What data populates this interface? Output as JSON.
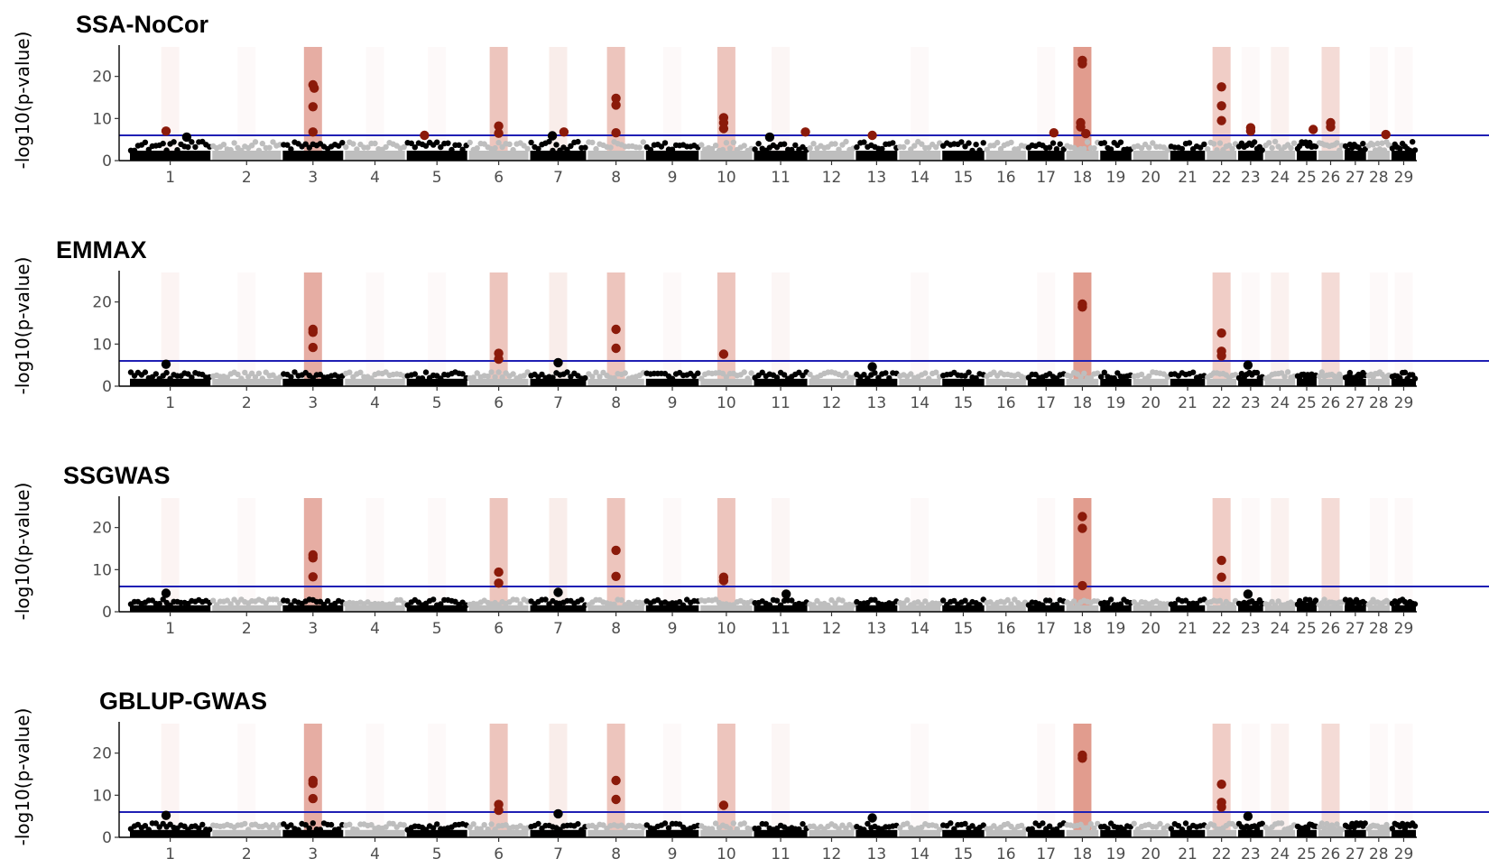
{
  "chart_data": {
    "type": "scatter",
    "ylabel": "-log10(p-value)",
    "yticks": [
      0,
      10,
      20
    ],
    "ylim": [
      0,
      27
    ],
    "threshold": 6,
    "colors": {
      "odd_chr": "#000000",
      "even_chr": "#bebebe",
      "significant": "#8b1a0a",
      "threshold_line": "#1f1fb4",
      "highlight": "#c84a32"
    },
    "chromosomes": [
      {
        "chr": "1",
        "len": 160
      },
      {
        "chr": "2",
        "len": 137
      },
      {
        "chr": "3",
        "len": 121
      },
      {
        "chr": "4",
        "len": 120
      },
      {
        "chr": "5",
        "len": 121
      },
      {
        "chr": "6",
        "len": 119
      },
      {
        "chr": "7",
        "len": 112
      },
      {
        "chr": "8",
        "len": 113
      },
      {
        "chr": "9",
        "len": 106
      },
      {
        "chr": "10",
        "len": 104
      },
      {
        "chr": "11",
        "len": 107
      },
      {
        "chr": "12",
        "len": 91
      },
      {
        "chr": "13",
        "len": 84
      },
      {
        "chr": "14",
        "len": 84
      },
      {
        "chr": "15",
        "len": 85
      },
      {
        "chr": "16",
        "len": 81
      },
      {
        "chr": "17",
        "len": 75
      },
      {
        "chr": "18",
        "len": 66
      },
      {
        "chr": "19",
        "len": 64
      },
      {
        "chr": "20",
        "len": 72
      },
      {
        "chr": "21",
        "len": 71
      },
      {
        "chr": "22",
        "len": 61
      },
      {
        "chr": "23",
        "len": 52
      },
      {
        "chr": "24",
        "len": 62
      },
      {
        "chr": "25",
        "len": 42
      },
      {
        "chr": "26",
        "len": 51
      },
      {
        "chr": "27",
        "len": 45
      },
      {
        "chr": "28",
        "len": 46
      },
      {
        "chr": "29",
        "len": 51
      }
    ],
    "highlights": [
      {
        "chr": "1",
        "intensity": 0.06
      },
      {
        "chr": "2",
        "intensity": 0.03
      },
      {
        "chr": "3",
        "intensity": 0.45
      },
      {
        "chr": "4",
        "intensity": 0.03
      },
      {
        "chr": "5",
        "intensity": 0.03
      },
      {
        "chr": "6",
        "intensity": 0.32
      },
      {
        "chr": "7",
        "intensity": 0.1
      },
      {
        "chr": "8",
        "intensity": 0.32
      },
      {
        "chr": "9",
        "intensity": 0.03
      },
      {
        "chr": "10",
        "intensity": 0.32
      },
      {
        "chr": "11",
        "intensity": 0.05
      },
      {
        "chr": "14",
        "intensity": 0.03
      },
      {
        "chr": "17",
        "intensity": 0.03
      },
      {
        "chr": "18",
        "intensity": 0.55
      },
      {
        "chr": "22",
        "intensity": 0.28
      },
      {
        "chr": "23",
        "intensity": 0.03
      },
      {
        "chr": "24",
        "intensity": 0.08
      },
      {
        "chr": "26",
        "intensity": 0.2
      },
      {
        "chr": "28",
        "intensity": 0.03
      },
      {
        "chr": "29",
        "intensity": 0.03
      }
    ],
    "panels": [
      {
        "title": "SSA-NoCor",
        "baseline": 4.3,
        "top_snps": [
          {
            "chr": "1",
            "pos": 0.45,
            "y": 7.0
          },
          {
            "chr": "1",
            "pos": 0.7,
            "y": 5.6
          },
          {
            "chr": "3",
            "pos": 0.5,
            "y": 18.0
          },
          {
            "chr": "3",
            "pos": 0.52,
            "y": 17.2
          },
          {
            "chr": "3",
            "pos": 0.5,
            "y": 12.8
          },
          {
            "chr": "3",
            "pos": 0.5,
            "y": 6.8
          },
          {
            "chr": "5",
            "pos": 0.3,
            "y": 6.0
          },
          {
            "chr": "6",
            "pos": 0.5,
            "y": 8.2
          },
          {
            "chr": "6",
            "pos": 0.5,
            "y": 6.5
          },
          {
            "chr": "7",
            "pos": 0.4,
            "y": 5.9
          },
          {
            "chr": "7",
            "pos": 0.6,
            "y": 6.8
          },
          {
            "chr": "8",
            "pos": 0.5,
            "y": 14.8
          },
          {
            "chr": "8",
            "pos": 0.5,
            "y": 13.2
          },
          {
            "chr": "8",
            "pos": 0.5,
            "y": 6.6
          },
          {
            "chr": "10",
            "pos": 0.45,
            "y": 10.2
          },
          {
            "chr": "10",
            "pos": 0.45,
            "y": 9.0
          },
          {
            "chr": "10",
            "pos": 0.45,
            "y": 7.6
          },
          {
            "chr": "11",
            "pos": 0.3,
            "y": 5.6
          },
          {
            "chr": "11",
            "pos": 0.95,
            "y": 6.8
          },
          {
            "chr": "13",
            "pos": 0.4,
            "y": 6.0
          },
          {
            "chr": "17",
            "pos": 0.7,
            "y": 6.6
          },
          {
            "chr": "18",
            "pos": 0.5,
            "y": 23.8
          },
          {
            "chr": "18",
            "pos": 0.5,
            "y": 23.0
          },
          {
            "chr": "18",
            "pos": 0.45,
            "y": 9.0
          },
          {
            "chr": "18",
            "pos": 0.45,
            "y": 8.0
          },
          {
            "chr": "18",
            "pos": 0.6,
            "y": 6.4
          },
          {
            "chr": "22",
            "pos": 0.5,
            "y": 17.5
          },
          {
            "chr": "22",
            "pos": 0.5,
            "y": 13.0
          },
          {
            "chr": "22",
            "pos": 0.5,
            "y": 9.5
          },
          {
            "chr": "23",
            "pos": 0.5,
            "y": 7.8
          },
          {
            "chr": "23",
            "pos": 0.5,
            "y": 7.0
          },
          {
            "chr": "25",
            "pos": 0.8,
            "y": 7.4
          },
          {
            "chr": "26",
            "pos": 0.5,
            "y": 9.0
          },
          {
            "chr": "26",
            "pos": 0.5,
            "y": 8.0
          },
          {
            "chr": "28",
            "pos": 0.8,
            "y": 6.2
          }
        ]
      },
      {
        "title": "EMMAX",
        "baseline": 3.2,
        "top_snps": [
          {
            "chr": "1",
            "pos": 0.45,
            "y": 5.2
          },
          {
            "chr": "3",
            "pos": 0.5,
            "y": 13.5
          },
          {
            "chr": "3",
            "pos": 0.5,
            "y": 12.8
          },
          {
            "chr": "3",
            "pos": 0.5,
            "y": 9.2
          },
          {
            "chr": "6",
            "pos": 0.5,
            "y": 7.8
          },
          {
            "chr": "6",
            "pos": 0.5,
            "y": 6.4
          },
          {
            "chr": "7",
            "pos": 0.5,
            "y": 5.6
          },
          {
            "chr": "8",
            "pos": 0.5,
            "y": 13.5
          },
          {
            "chr": "8",
            "pos": 0.5,
            "y": 9.0
          },
          {
            "chr": "10",
            "pos": 0.45,
            "y": 7.6
          },
          {
            "chr": "13",
            "pos": 0.4,
            "y": 4.6
          },
          {
            "chr": "18",
            "pos": 0.5,
            "y": 19.5
          },
          {
            "chr": "18",
            "pos": 0.5,
            "y": 18.8
          },
          {
            "chr": "22",
            "pos": 0.5,
            "y": 12.6
          },
          {
            "chr": "22",
            "pos": 0.5,
            "y": 8.3
          },
          {
            "chr": "22",
            "pos": 0.5,
            "y": 7.2
          },
          {
            "chr": "23",
            "pos": 0.4,
            "y": 5.0
          }
        ]
      },
      {
        "title": "SSGWAS",
        "baseline": 2.8,
        "top_snps": [
          {
            "chr": "1",
            "pos": 0.45,
            "y": 4.4
          },
          {
            "chr": "3",
            "pos": 0.5,
            "y": 13.5
          },
          {
            "chr": "3",
            "pos": 0.5,
            "y": 12.8
          },
          {
            "chr": "3",
            "pos": 0.5,
            "y": 8.3
          },
          {
            "chr": "6",
            "pos": 0.5,
            "y": 9.4
          },
          {
            "chr": "6",
            "pos": 0.5,
            "y": 6.8
          },
          {
            "chr": "7",
            "pos": 0.5,
            "y": 4.6
          },
          {
            "chr": "8",
            "pos": 0.5,
            "y": 14.6
          },
          {
            "chr": "8",
            "pos": 0.5,
            "y": 8.4
          },
          {
            "chr": "10",
            "pos": 0.45,
            "y": 8.2
          },
          {
            "chr": "10",
            "pos": 0.45,
            "y": 7.4
          },
          {
            "chr": "11",
            "pos": 0.6,
            "y": 4.2
          },
          {
            "chr": "18",
            "pos": 0.5,
            "y": 22.6
          },
          {
            "chr": "18",
            "pos": 0.5,
            "y": 19.8
          },
          {
            "chr": "18",
            "pos": 0.5,
            "y": 6.2
          },
          {
            "chr": "22",
            "pos": 0.5,
            "y": 12.2
          },
          {
            "chr": "22",
            "pos": 0.5,
            "y": 8.2
          },
          {
            "chr": "23",
            "pos": 0.4,
            "y": 4.2
          }
        ]
      },
      {
        "title": "GBLUP-GWAS",
        "baseline": 3.2,
        "top_snps": [
          {
            "chr": "1",
            "pos": 0.45,
            "y": 5.2
          },
          {
            "chr": "3",
            "pos": 0.5,
            "y": 13.5
          },
          {
            "chr": "3",
            "pos": 0.5,
            "y": 12.8
          },
          {
            "chr": "3",
            "pos": 0.5,
            "y": 9.2
          },
          {
            "chr": "6",
            "pos": 0.5,
            "y": 7.8
          },
          {
            "chr": "6",
            "pos": 0.5,
            "y": 6.4
          },
          {
            "chr": "7",
            "pos": 0.5,
            "y": 5.6
          },
          {
            "chr": "8",
            "pos": 0.5,
            "y": 13.5
          },
          {
            "chr": "8",
            "pos": 0.5,
            "y": 9.0
          },
          {
            "chr": "10",
            "pos": 0.45,
            "y": 7.6
          },
          {
            "chr": "13",
            "pos": 0.4,
            "y": 4.6
          },
          {
            "chr": "18",
            "pos": 0.5,
            "y": 19.5
          },
          {
            "chr": "18",
            "pos": 0.5,
            "y": 18.8
          },
          {
            "chr": "22",
            "pos": 0.5,
            "y": 12.6
          },
          {
            "chr": "22",
            "pos": 0.5,
            "y": 8.3
          },
          {
            "chr": "22",
            "pos": 0.5,
            "y": 7.2
          },
          {
            "chr": "23",
            "pos": 0.4,
            "y": 5.0
          }
        ]
      }
    ]
  }
}
